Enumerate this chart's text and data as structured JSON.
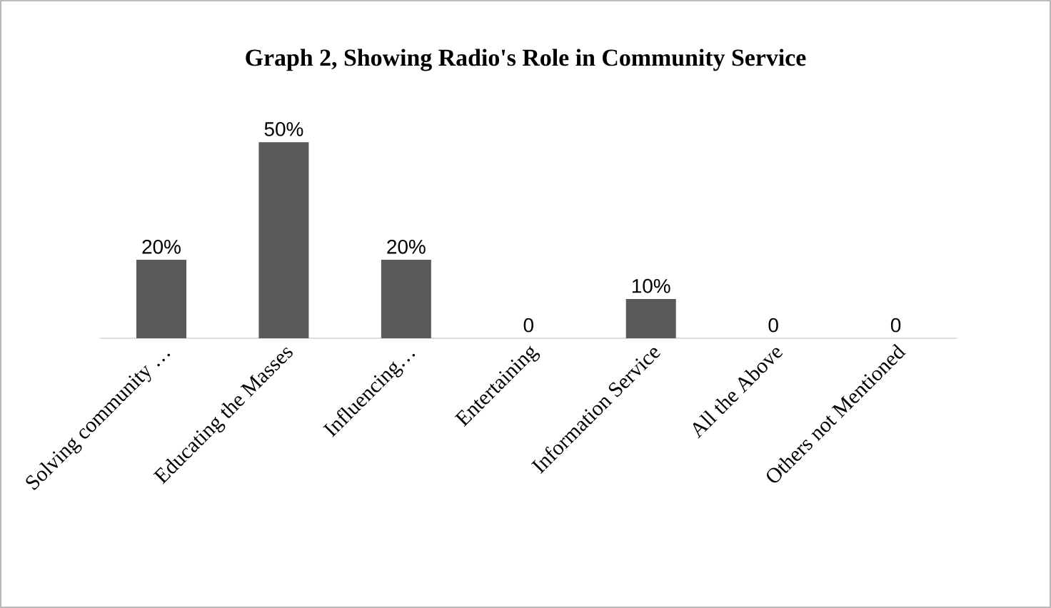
{
  "chart_data": {
    "type": "bar",
    "title": "Graph 2, Showing Radio's Role in Community Service",
    "categories": [
      "Solving community …",
      "Educating the Masses",
      "Influencing…",
      "Entertaining",
      "Information Service",
      "All the Above",
      "Others not Mentioned"
    ],
    "values": [
      20,
      50,
      20,
      0,
      10,
      0,
      0
    ],
    "value_labels": [
      "20%",
      "50%",
      "20%",
      "0",
      "10%",
      "0",
      "0"
    ],
    "color": "#595959",
    "tick_labels": "x"
  }
}
